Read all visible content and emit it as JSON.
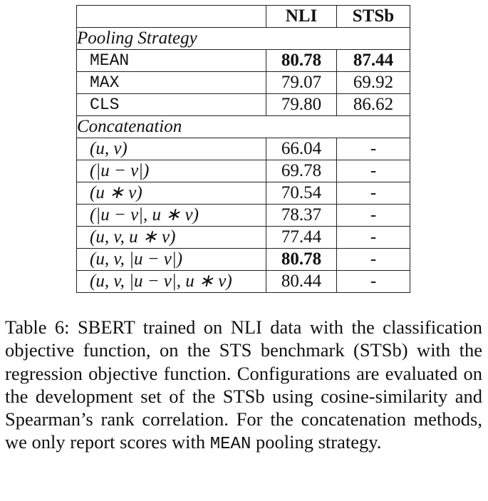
{
  "table": {
    "headers": [
      "",
      "NLI",
      "STSb"
    ],
    "sections": [
      {
        "title": "Pooling Strategy",
        "style": "mono",
        "rows": [
          {
            "label": "MEAN",
            "nli": "80.78",
            "stsb": "87.44",
            "nli_bold": true,
            "stsb_bold": true
          },
          {
            "label": "MAX",
            "nli": "79.07",
            "stsb": "69.92",
            "nli_bold": false,
            "stsb_bold": false
          },
          {
            "label": "CLS",
            "nli": "79.80",
            "stsb": "86.62",
            "nli_bold": false,
            "stsb_bold": false
          }
        ]
      },
      {
        "title": "Concatenation",
        "style": "math",
        "rows": [
          {
            "label": "(u, v)",
            "nli": "66.04",
            "stsb": "-",
            "nli_bold": false,
            "stsb_bold": false
          },
          {
            "label": "(|u − v|)",
            "nli": "69.78",
            "stsb": "-",
            "nli_bold": false,
            "stsb_bold": false
          },
          {
            "label": "(u ∗ v)",
            "nli": "70.54",
            "stsb": "-",
            "nli_bold": false,
            "stsb_bold": false
          },
          {
            "label": "(|u − v|, u ∗ v)",
            "nli": "78.37",
            "stsb": "-",
            "nli_bold": false,
            "stsb_bold": false
          },
          {
            "label": "(u, v, u ∗ v)",
            "nli": "77.44",
            "stsb": "-",
            "nli_bold": false,
            "stsb_bold": false
          },
          {
            "label": "(u, v, |u − v|)",
            "nli": "80.78",
            "stsb": "-",
            "nli_bold": true,
            "stsb_bold": false
          },
          {
            "label": "(u, v, |u − v|, u ∗ v)",
            "nli": "80.44",
            "stsb": "-",
            "nli_bold": false,
            "stsb_bold": false
          }
        ]
      }
    ]
  },
  "caption": {
    "prefix": "Table 6:  SBERT trained on NLI data with the classification objective function, on the STS benchmark (STSb) with the regression objective function.  Configurations are evaluated on the development set of the STSb using cosine-similarity and Spearman’s rank correlation. For the concatenation methods, we only report scores with ",
    "code": "MEAN",
    "suffix": " pooling strategy."
  }
}
